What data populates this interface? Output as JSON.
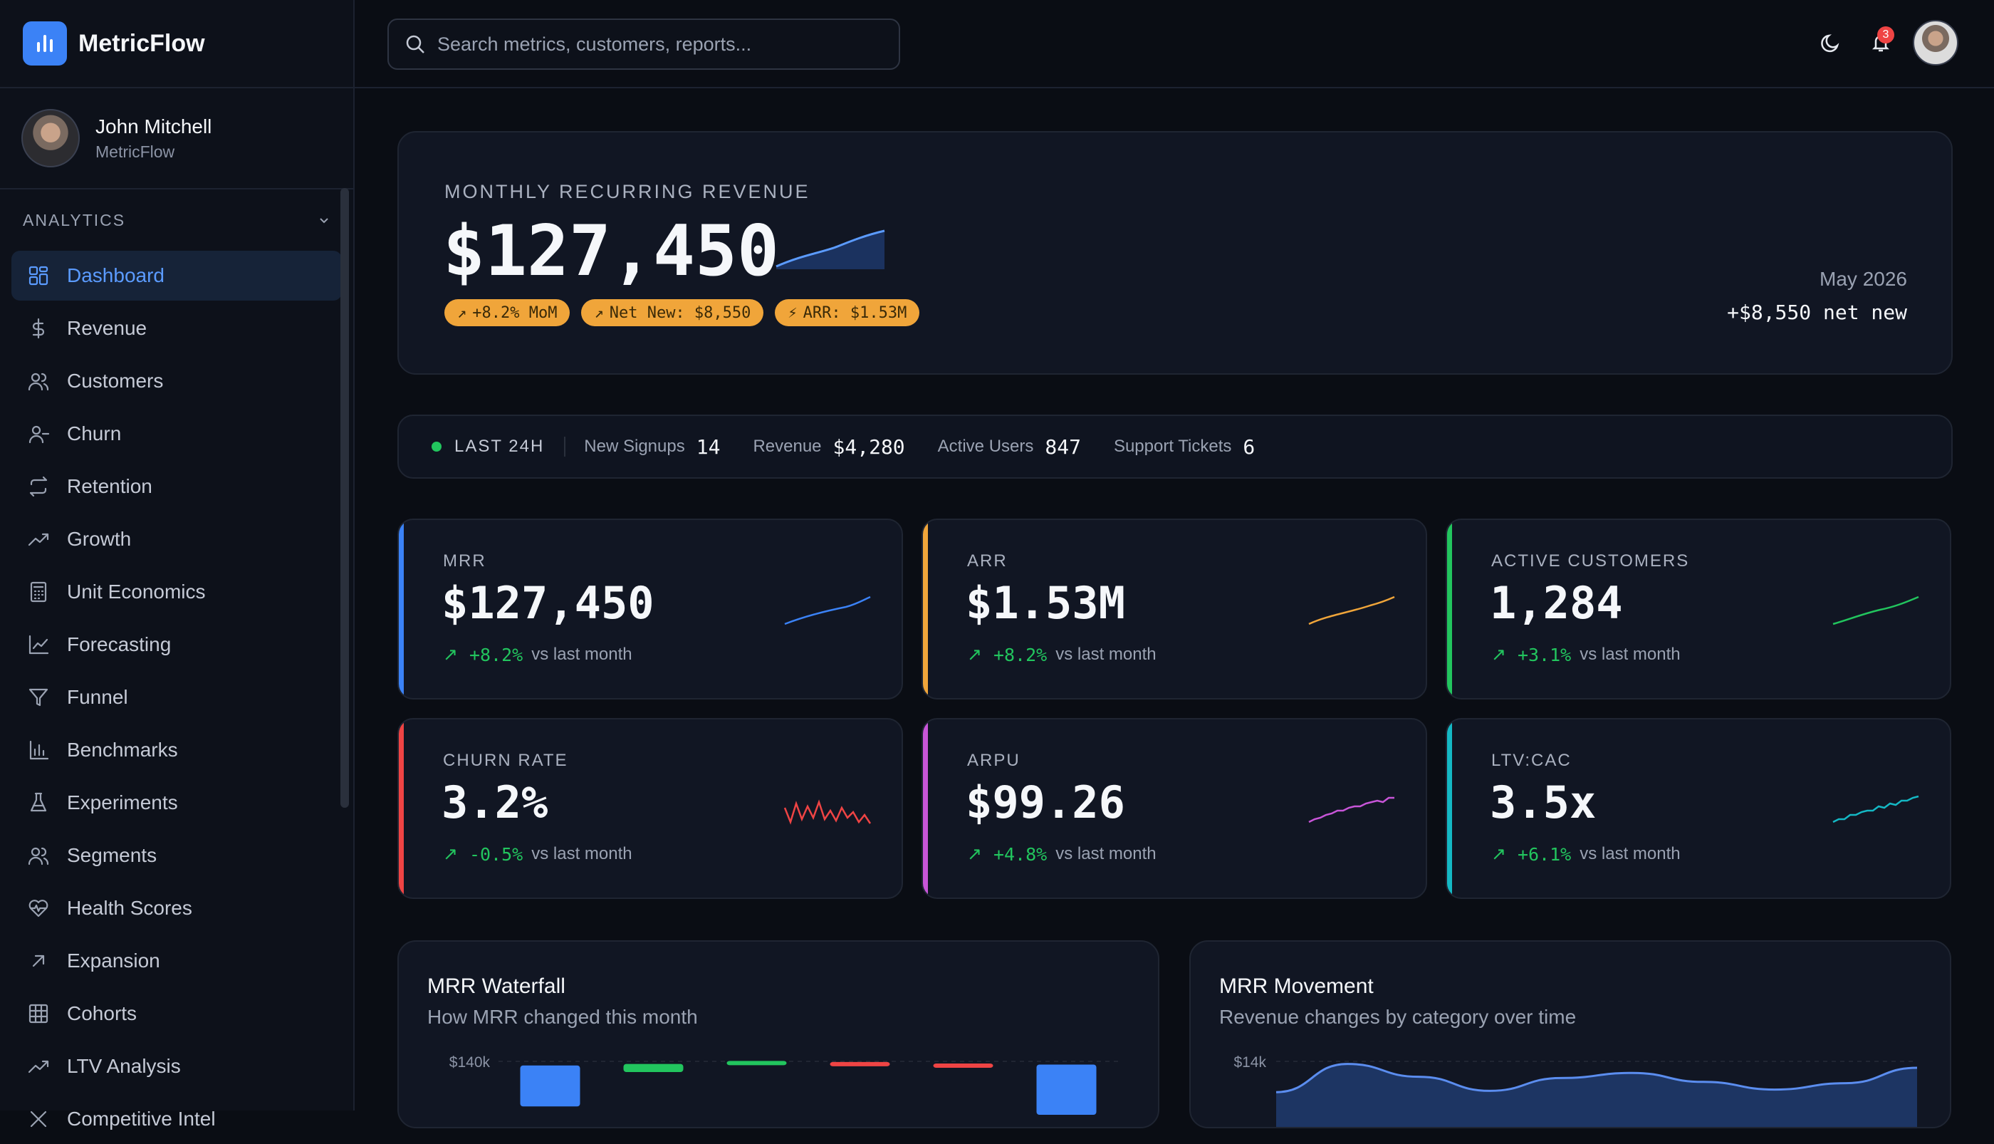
{
  "brand": {
    "name": "MetricFlow"
  },
  "user": {
    "name": "John Mitchell",
    "org": "MetricFlow"
  },
  "sidebar": {
    "section": "ANALYTICS",
    "items": [
      {
        "label": "Dashboard",
        "icon": "dashboard-icon",
        "active": true
      },
      {
        "label": "Revenue",
        "icon": "dollar-icon"
      },
      {
        "label": "Customers",
        "icon": "users-icon"
      },
      {
        "label": "Churn",
        "icon": "user-minus-icon"
      },
      {
        "label": "Retention",
        "icon": "repeat-icon"
      },
      {
        "label": "Growth",
        "icon": "trending-up-icon"
      },
      {
        "label": "Unit Economics",
        "icon": "calculator-icon"
      },
      {
        "label": "Forecasting",
        "icon": "line-chart-icon"
      },
      {
        "label": "Funnel",
        "icon": "filter-icon"
      },
      {
        "label": "Benchmarks",
        "icon": "bar-chart-icon"
      },
      {
        "label": "Experiments",
        "icon": "flask-icon"
      },
      {
        "label": "Segments",
        "icon": "users-icon"
      },
      {
        "label": "Health Scores",
        "icon": "heart-pulse-icon"
      },
      {
        "label": "Expansion",
        "icon": "arrow-up-right-icon"
      },
      {
        "label": "Cohorts",
        "icon": "grid-icon"
      },
      {
        "label": "LTV Analysis",
        "icon": "trending-up-icon"
      },
      {
        "label": "Competitive Intel",
        "icon": "crosshair-icon"
      }
    ]
  },
  "search": {
    "placeholder": "Search metrics, customers, reports..."
  },
  "topbar": {
    "notifications": "3"
  },
  "hero": {
    "label": "MONTHLY RECURRING REVENUE",
    "value": "$127,450",
    "pills": [
      "+8.2% MoM",
      "Net New: $8,550",
      "ARR: $1.53M"
    ],
    "month": "May 2026",
    "net_new": "+$8,550 net new"
  },
  "strip": {
    "live": "LAST 24H",
    "stats": [
      {
        "label": "New Signups",
        "value": "14"
      },
      {
        "label": "Revenue",
        "value": "$4,280"
      },
      {
        "label": "Active Users",
        "value": "847"
      },
      {
        "label": "Support Tickets",
        "value": "6"
      }
    ]
  },
  "kpis": [
    {
      "label": "MRR",
      "value": "$127,450",
      "delta": "+8.2%",
      "vs": "vs last month",
      "color": "#3b82f6"
    },
    {
      "label": "ARR",
      "value": "$1.53M",
      "delta": "+8.2%",
      "vs": "vs last month",
      "color": "#f0a53a"
    },
    {
      "label": "ACTIVE CUSTOMERS",
      "value": "1,284",
      "delta": "+3.1%",
      "vs": "vs last month",
      "color": "#22c55e"
    },
    {
      "label": "CHURN RATE",
      "value": "3.2%",
      "delta": "-0.5%",
      "vs": "vs last month",
      "color": "#ef4444"
    },
    {
      "label": "ARPU",
      "value": "$99.26",
      "delta": "+4.8%",
      "vs": "vs last month",
      "color": "#c855d8"
    },
    {
      "label": "LTV:CAC",
      "value": "3.5x",
      "delta": "+6.1%",
      "vs": "vs last month",
      "color": "#14b8c4"
    }
  ],
  "panels": {
    "waterfall": {
      "title": "MRR Waterfall",
      "subtitle": "How MRR changed this month"
    },
    "movement": {
      "title": "MRR Movement",
      "subtitle": "Revenue changes by category over time"
    }
  },
  "chart_data": [
    {
      "type": "bar",
      "title": "MRR Waterfall",
      "ytick_labels": [
        "$140k"
      ],
      "ylim": [
        100000,
        140000
      ],
      "bars": [
        {
          "bottom": 118900,
          "top": 138100,
          "color": "#3b82f6"
        },
        {
          "bottom": 135000,
          "top": 138800,
          "color": "#22c55e"
        },
        {
          "bottom": 138800,
          "top": 140200,
          "color": "#22c55e"
        },
        {
          "bottom": 139000,
          "top": 139700,
          "color": "#ef4444"
        },
        {
          "bottom": 138100,
          "top": 139000,
          "color": "#ef4444"
        },
        {
          "bottom": 115000,
          "top": 138500,
          "color": "#3b82f6"
        }
      ]
    },
    {
      "type": "area",
      "title": "MRR Movement",
      "ytick_labels": [
        "$14k"
      ],
      "ylim": [
        0,
        14000
      ],
      "series": [
        {
          "values": [
            11600,
            13800,
            12800,
            11700,
            12700,
            13100,
            12400,
            11800,
            12300,
            13500
          ],
          "color": "#5b8def"
        }
      ]
    }
  ]
}
